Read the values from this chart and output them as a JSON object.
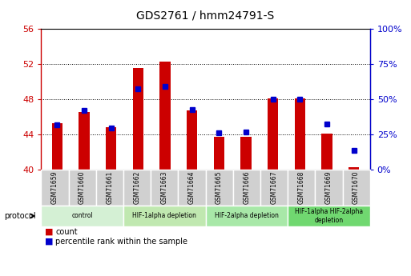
{
  "title": "GDS2761 / hmm24791-S",
  "samples": [
    "GSM71659",
    "GSM71660",
    "GSM71661",
    "GSM71662",
    "GSM71663",
    "GSM71664",
    "GSM71665",
    "GSM71666",
    "GSM71667",
    "GSM71668",
    "GSM71669",
    "GSM71670"
  ],
  "count_values": [
    45.3,
    46.6,
    44.8,
    51.6,
    52.3,
    46.7,
    43.7,
    43.7,
    48.1,
    48.1,
    44.1,
    40.3
  ],
  "percentile_values": [
    45.1,
    46.7,
    44.7,
    49.2,
    49.5,
    46.85,
    44.2,
    44.3,
    48.0,
    48.0,
    45.2,
    42.2
  ],
  "count_baseline": 40,
  "ylim_left": [
    40,
    56
  ],
  "ylim_right": [
    0,
    100
  ],
  "yticks_left": [
    40,
    44,
    48,
    52,
    56
  ],
  "ytick_labels_left": [
    "40",
    "44",
    "48",
    "52",
    "56"
  ],
  "yticks_right": [
    0,
    25,
    50,
    75,
    100
  ],
  "ytick_labels_right": [
    "0%",
    "25%",
    "50%",
    "75%",
    "100%"
  ],
  "groups": [
    {
      "label": "control",
      "start": 0,
      "end": 3,
      "color": "#d4f0d4"
    },
    {
      "label": "HIF-1alpha depletion",
      "start": 3,
      "end": 6,
      "color": "#c0e8b0"
    },
    {
      "label": "HIF-2alpha depletion",
      "start": 6,
      "end": 9,
      "color": "#a8e8a8"
    },
    {
      "label": "HIF-1alpha HIF-2alpha\ndepletion",
      "start": 9,
      "end": 12,
      "color": "#70d870"
    }
  ],
  "bar_color": "#cc0000",
  "percentile_color": "#0000cc",
  "left_axis_color": "#cc0000",
  "right_axis_color": "#0000cc",
  "grid_color": "#000000",
  "plot_bg_color": "#ffffff",
  "fig_bg_color": "#ffffff",
  "sample_box_color": "#d0d0d0",
  "protocol_label": "protocol",
  "legend_count": "count",
  "legend_percentile": "percentile rank within the sample",
  "bar_width": 0.4,
  "percentile_marker_size": 4,
  "fig_width": 5.13,
  "fig_height": 3.45,
  "dpi": 100
}
